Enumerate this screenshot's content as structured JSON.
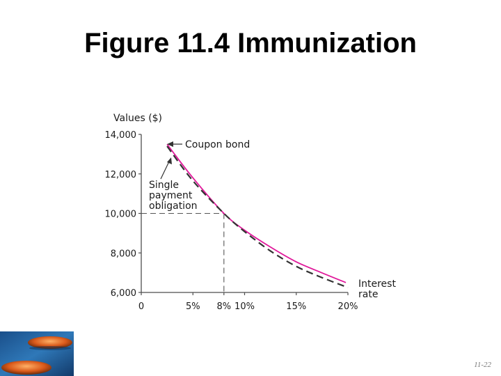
{
  "slide": {
    "title": "Figure 11.4 Immunization",
    "page_number": "11-22"
  },
  "chart_data": {
    "type": "line",
    "ylabel": "Values ($)",
    "xlabel": "Interest rate",
    "x_unit": "%",
    "xlim": [
      0,
      20
    ],
    "ylim": [
      6000,
      14000
    ],
    "x_ticks": [
      0,
      5,
      8,
      10,
      15,
      20
    ],
    "x_tick_labels": [
      "0",
      "5%",
      "8%",
      "10%",
      "15%",
      "20%"
    ],
    "y_ticks": [
      6000,
      8000,
      10000,
      12000,
      14000
    ],
    "y_tick_labels": [
      "6,000",
      "8,000",
      "10,000",
      "12,000",
      "14,000"
    ],
    "series": [
      {
        "name": "Coupon bond",
        "color": "#e0189a",
        "style": "solid",
        "x": [
          2.5,
          5,
          8,
          10,
          12.5,
          15,
          17.5,
          19.8
        ],
        "y": [
          13500,
          11800,
          10000,
          9150,
          8300,
          7550,
          6990,
          6500
        ]
      },
      {
        "name": "Single payment obligation",
        "color": "#333333",
        "style": "dashed",
        "x": [
          2.5,
          5,
          8,
          10,
          12.5,
          15,
          17.5,
          20
        ],
        "y": [
          13400,
          11650,
          10000,
          9080,
          8100,
          7320,
          6750,
          6250
        ]
      }
    ],
    "reference_lines": {
      "x": 8,
      "y": 10000
    },
    "annotations": {
      "coupon_label": "Coupon bond",
      "single_label_lines": [
        "Single",
        "payment",
        "obligation"
      ],
      "xaxis_label_lines": [
        "Interest",
        "rate"
      ]
    },
    "grid": false
  },
  "colors": {
    "coupon": "#e0189a",
    "single": "#333333",
    "axis": "#4d4d4d"
  }
}
